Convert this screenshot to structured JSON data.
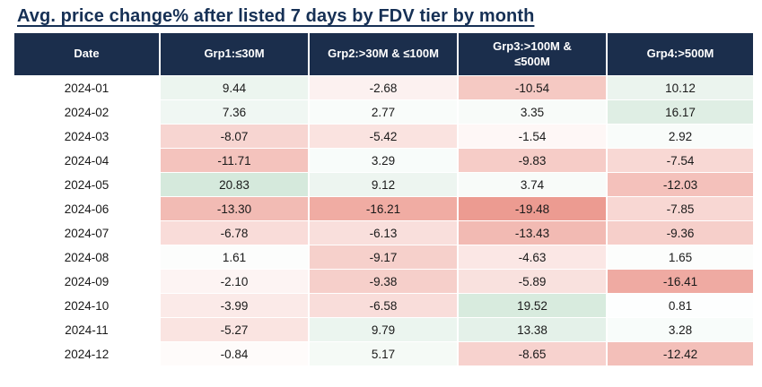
{
  "table": {
    "header": [
      "Date",
      "Grp1:≤30M",
      "Grp2:>30M & ≤100M",
      "Grp3:>100M &\n≤500M",
      "Grp4:>500M"
    ]
  },
  "chart_data": {
    "type": "heatmap",
    "title": "Avg. price change% after listed 7 days by FDV tier by month",
    "columns": [
      "Grp1:≤30M",
      "Grp2:>30M & ≤100M",
      "Grp3:>100M & ≤500M",
      "Grp4:>500M"
    ],
    "rows": [
      "2024-01",
      "2024-02",
      "2024-03",
      "2024-04",
      "2024-05",
      "2024-06",
      "2024-07",
      "2024-08",
      "2024-09",
      "2024-10",
      "2024-11",
      "2024-12"
    ],
    "values": [
      [
        9.44,
        -2.68,
        -10.54,
        10.12
      ],
      [
        7.36,
        2.77,
        3.35,
        16.17
      ],
      [
        -8.07,
        -5.42,
        -1.54,
        2.92
      ],
      [
        -11.71,
        3.29,
        -9.83,
        -7.54
      ],
      [
        20.83,
        9.12,
        3.74,
        -12.03
      ],
      [
        -13.3,
        -16.21,
        -19.48,
        -7.85
      ],
      [
        -6.78,
        -6.13,
        -13.43,
        -9.36
      ],
      [
        1.61,
        -9.17,
        -4.63,
        1.65
      ],
      [
        -2.1,
        -9.38,
        -5.89,
        -16.41
      ],
      [
        -3.99,
        -6.58,
        19.52,
        0.81
      ],
      [
        -5.27,
        9.79,
        13.38,
        3.28
      ],
      [
        -0.84,
        5.17,
        -8.65,
        -12.42
      ]
    ],
    "value_decimals": 2,
    "colors": {
      "header_bg": "#1b2e4c",
      "header_text": "#ffffff",
      "title": "#163055",
      "negative_full": "#ec988e",
      "positive_full": "#d5e9dc",
      "zero": "#ffffff"
    },
    "scale": {
      "negative_limit": 20,
      "positive_limit": 21
    },
    "layout": {
      "legend": "none",
      "grid": "white-cell-gaps"
    }
  }
}
